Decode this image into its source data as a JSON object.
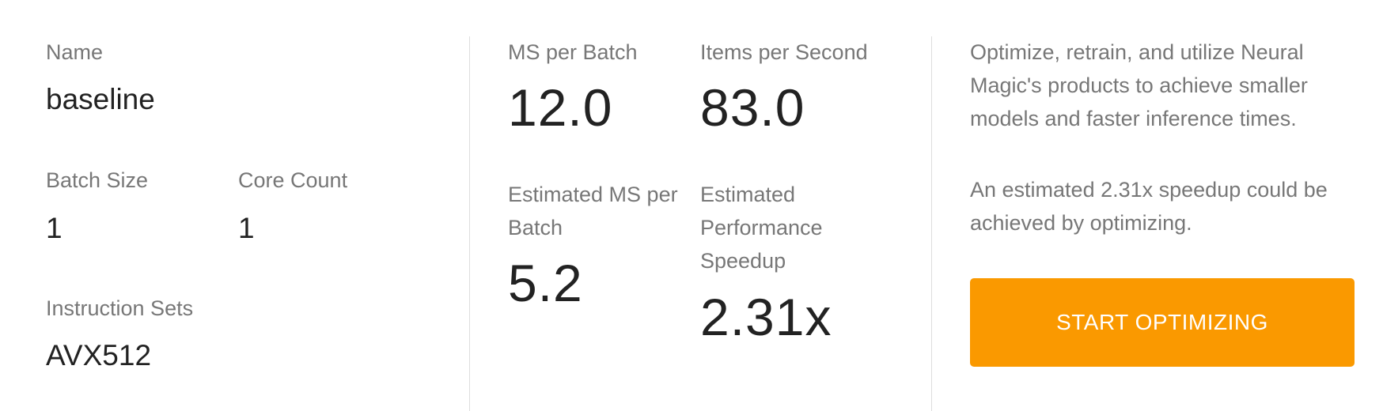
{
  "profile": {
    "name_label": "Name",
    "name_value": "baseline",
    "batch_size_label": "Batch Size",
    "batch_size_value": "1",
    "core_count_label": "Core Count",
    "core_count_value": "1",
    "instruction_sets_label": "Instruction Sets",
    "instruction_sets_value": "AVX512"
  },
  "metrics": {
    "ms_per_batch_label": "MS per Batch",
    "ms_per_batch_value": "12.0",
    "items_per_second_label": "Items per Second",
    "items_per_second_value": "83.0",
    "est_ms_per_batch_label_line1": "Estimated MS per",
    "est_ms_per_batch_label_line2": "Batch",
    "est_ms_per_batch_value": "5.2",
    "est_speedup_label_line1": "Estimated",
    "est_speedup_label_line2": "Performance",
    "est_speedup_label_line3": "Speedup",
    "est_speedup_value": "2.31x"
  },
  "promo": {
    "line1": "Optimize, retrain, and utilize Neural",
    "line2": "Magic's products to achieve smaller",
    "line3": "models and faster inference times.",
    "speedup_line1": "An estimated 2.31x speedup could be",
    "speedup_line2": "achieved by optimizing.",
    "button_label": "START OPTIMIZING"
  },
  "colors": {
    "accent": "#fa9900",
    "label": "#777777",
    "value": "#222222",
    "divider": "#dddddd"
  }
}
